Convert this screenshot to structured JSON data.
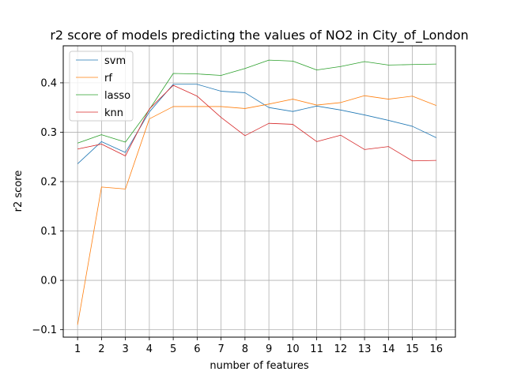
{
  "chart_data": {
    "type": "line",
    "title": "r2 score of models predicting the values of NO2 in City_of_London",
    "xlabel": "number of features",
    "ylabel": "r2 score",
    "x": [
      1,
      2,
      3,
      4,
      5,
      6,
      7,
      8,
      9,
      10,
      11,
      12,
      13,
      14,
      15,
      16
    ],
    "xlim": [
      0.4,
      16.8
    ],
    "ylim": [
      -0.115,
      0.475
    ],
    "yticks": [
      -0.1,
      0.0,
      0.1,
      0.2,
      0.3,
      0.4
    ],
    "ytick_labels": [
      "−0.1",
      "0.0",
      "0.1",
      "0.2",
      "0.3",
      "0.4"
    ],
    "grid": true,
    "legend_position": "upper-left",
    "series": [
      {
        "name": "svm",
        "color": "#1f77b4",
        "values": [
          0.236,
          0.281,
          0.259,
          0.341,
          0.397,
          0.397,
          0.383,
          0.38,
          0.35,
          0.342,
          0.353,
          0.345,
          0.335,
          0.324,
          0.312,
          0.289
        ]
      },
      {
        "name": "rf",
        "color": "#ff7f0e",
        "values": [
          -0.09,
          0.189,
          0.185,
          0.327,
          0.352,
          0.352,
          0.352,
          0.348,
          0.357,
          0.367,
          0.355,
          0.36,
          0.374,
          0.367,
          0.373,
          0.354
        ]
      },
      {
        "name": "lasso",
        "color": "#2ca02c",
        "values": [
          0.278,
          0.295,
          0.28,
          0.346,
          0.419,
          0.418,
          0.415,
          0.429,
          0.446,
          0.444,
          0.426,
          0.433,
          0.443,
          0.436,
          0.437,
          0.438
        ]
      },
      {
        "name": "knn",
        "color": "#d62728",
        "values": [
          0.266,
          0.276,
          0.252,
          0.347,
          0.395,
          0.373,
          0.33,
          0.293,
          0.318,
          0.316,
          0.281,
          0.294,
          0.265,
          0.271,
          0.242,
          0.243
        ]
      }
    ]
  }
}
